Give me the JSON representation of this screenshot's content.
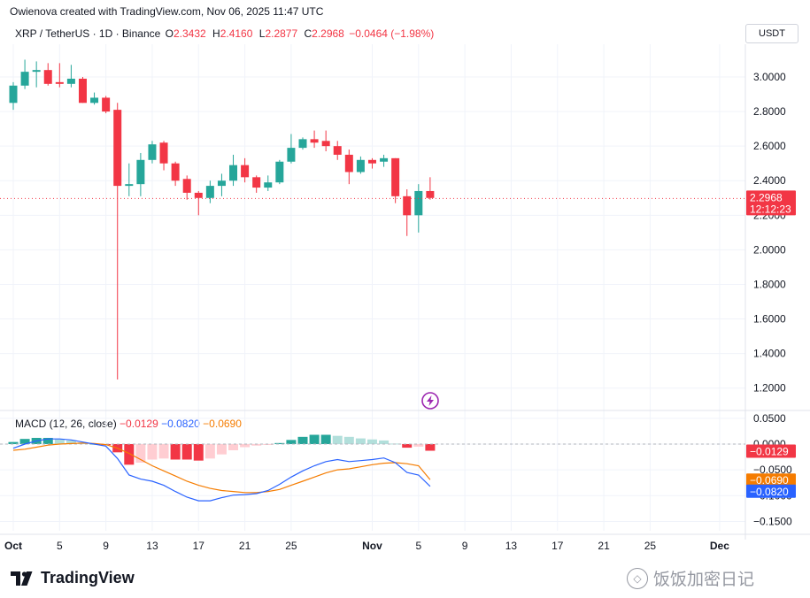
{
  "header": {
    "credit": "Owienova created with TradingView.com, Nov 06, 2025 11:47 UTC",
    "symbol": "XRP / TetherUS · 1D · Binance",
    "open_label": "O",
    "open": "2.3432",
    "high_label": "H",
    "high": "2.4160",
    "low_label": "L",
    "low": "2.2877",
    "close_label": "C",
    "close": "2.2968",
    "change": "−0.0464 (−1.98%)",
    "currency": "USDT"
  },
  "macd_legend": {
    "title": "MACD (12, 26, close)",
    "hist": "−0.0129",
    "macd": "−0.0820",
    "signal": "−0.0690"
  },
  "price_tag": {
    "value": "2.2968",
    "countdown": "12:12:23"
  },
  "footer": {
    "brand": "TradingView",
    "watermark": "饭饭加密日记"
  },
  "colors": {
    "up": "#26a69a",
    "down": "#f23645",
    "macd": "#2962ff",
    "signal": "#f57c00",
    "hist_up_strong": "#26a69a",
    "hist_up_weak": "#b2dfdb",
    "hist_down_strong": "#f23645",
    "hist_down_weak": "#ffcdd2"
  },
  "chart_data": [
    {
      "type": "candlestick",
      "title": "",
      "y_ticks": [
        "3.0000",
        "2.8000",
        "2.6000",
        "2.4000",
        "2.2000",
        "2.0000",
        "1.8000",
        "1.6000",
        "1.4000",
        "1.2000"
      ],
      "ylim": [
        1.1,
        3.2
      ],
      "x_ticks": [
        {
          "label": "Oct",
          "day": 1
        },
        {
          "label": "5",
          "day": 5
        },
        {
          "label": "9",
          "day": 9
        },
        {
          "label": "13",
          "day": 13
        },
        {
          "label": "17",
          "day": 17
        },
        {
          "label": "21",
          "day": 21
        },
        {
          "label": "25",
          "day": 25
        },
        {
          "label": "Nov",
          "day": 32
        },
        {
          "label": "5",
          "day": 36
        },
        {
          "label": "9",
          "day": 40
        },
        {
          "label": "13",
          "day": 44
        },
        {
          "label": "17",
          "day": 48
        },
        {
          "label": "21",
          "day": 52
        },
        {
          "label": "25",
          "day": 56
        },
        {
          "label": "Dec",
          "day": 62
        }
      ],
      "candles": [
        {
          "day": 1,
          "o": 2.85,
          "h": 2.97,
          "l": 2.81,
          "c": 2.95
        },
        {
          "day": 2,
          "o": 2.95,
          "h": 3.1,
          "l": 2.93,
          "c": 3.03
        },
        {
          "day": 3,
          "o": 3.03,
          "h": 3.09,
          "l": 2.94,
          "c": 3.04
        },
        {
          "day": 4,
          "o": 3.04,
          "h": 3.08,
          "l": 2.95,
          "c": 2.96
        },
        {
          "day": 5,
          "o": 2.97,
          "h": 3.08,
          "l": 2.94,
          "c": 2.96
        },
        {
          "day": 6,
          "o": 2.96,
          "h": 3.07,
          "l": 2.94,
          "c": 2.99
        },
        {
          "day": 7,
          "o": 2.99,
          "h": 3.0,
          "l": 2.85,
          "c": 2.85
        },
        {
          "day": 8,
          "o": 2.85,
          "h": 2.91,
          "l": 2.84,
          "c": 2.88
        },
        {
          "day": 9,
          "o": 2.88,
          "h": 2.89,
          "l": 2.79,
          "c": 2.8
        },
        {
          "day": 10,
          "o": 2.81,
          "h": 2.85,
          "l": 1.25,
          "c": 2.37
        },
        {
          "day": 11,
          "o": 2.37,
          "h": 2.5,
          "l": 2.31,
          "c": 2.38
        },
        {
          "day": 12,
          "o": 2.38,
          "h": 2.56,
          "l": 2.31,
          "c": 2.52
        },
        {
          "day": 13,
          "o": 2.52,
          "h": 2.63,
          "l": 2.5,
          "c": 2.61
        },
        {
          "day": 14,
          "o": 2.62,
          "h": 2.63,
          "l": 2.46,
          "c": 2.5
        },
        {
          "day": 15,
          "o": 2.5,
          "h": 2.51,
          "l": 2.37,
          "c": 2.4
        },
        {
          "day": 16,
          "o": 2.41,
          "h": 2.43,
          "l": 2.29,
          "c": 2.33
        },
        {
          "day": 17,
          "o": 2.33,
          "h": 2.34,
          "l": 2.2,
          "c": 2.3
        },
        {
          "day": 18,
          "o": 2.3,
          "h": 2.4,
          "l": 2.27,
          "c": 2.37
        },
        {
          "day": 19,
          "o": 2.37,
          "h": 2.44,
          "l": 2.31,
          "c": 2.4
        },
        {
          "day": 20,
          "o": 2.4,
          "h": 2.55,
          "l": 2.37,
          "c": 2.49
        },
        {
          "day": 21,
          "o": 2.49,
          "h": 2.53,
          "l": 2.39,
          "c": 2.42
        },
        {
          "day": 22,
          "o": 2.42,
          "h": 2.43,
          "l": 2.33,
          "c": 2.36
        },
        {
          "day": 23,
          "o": 2.36,
          "h": 2.43,
          "l": 2.34,
          "c": 2.39
        },
        {
          "day": 24,
          "o": 2.39,
          "h": 2.52,
          "l": 2.38,
          "c": 2.51
        },
        {
          "day": 25,
          "o": 2.51,
          "h": 2.67,
          "l": 2.5,
          "c": 2.59
        },
        {
          "day": 26,
          "o": 2.59,
          "h": 2.65,
          "l": 2.58,
          "c": 2.64
        },
        {
          "day": 27,
          "o": 2.64,
          "h": 2.69,
          "l": 2.59,
          "c": 2.62
        },
        {
          "day": 28,
          "o": 2.63,
          "h": 2.69,
          "l": 2.57,
          "c": 2.6
        },
        {
          "day": 29,
          "o": 2.6,
          "h": 2.63,
          "l": 2.52,
          "c": 2.55
        },
        {
          "day": 30,
          "o": 2.55,
          "h": 2.58,
          "l": 2.38,
          "c": 2.45
        },
        {
          "day": 31,
          "o": 2.45,
          "h": 2.54,
          "l": 2.44,
          "c": 2.52
        },
        {
          "day": 32,
          "o": 2.52,
          "h": 2.53,
          "l": 2.47,
          "c": 2.5
        },
        {
          "day": 33,
          "o": 2.51,
          "h": 2.55,
          "l": 2.48,
          "c": 2.53
        },
        {
          "day": 34,
          "o": 2.53,
          "h": 2.53,
          "l": 2.27,
          "c": 2.31
        },
        {
          "day": 35,
          "o": 2.31,
          "h": 2.35,
          "l": 2.08,
          "c": 2.2
        },
        {
          "day": 36,
          "o": 2.2,
          "h": 2.38,
          "l": 2.1,
          "c": 2.34
        },
        {
          "day": 37,
          "o": 2.34,
          "h": 2.42,
          "l": 2.29,
          "c": 2.3
        }
      ],
      "last_price": 2.2968
    },
    {
      "type": "macd",
      "title": "MACD (12, 26, close)",
      "y_ticks": [
        "0.0500",
        "0.0000",
        "−0.0500",
        "−0.1000",
        "−0.1500"
      ],
      "ylim": [
        -0.17,
        0.07
      ],
      "histogram": [
        0.004,
        0.01,
        0.012,
        0.012,
        0.01,
        0.007,
        0.003,
        0.0,
        -0.002,
        -0.016,
        -0.04,
        -0.036,
        -0.03,
        -0.028,
        -0.03,
        -0.03,
        -0.032,
        -0.028,
        -0.02,
        -0.012,
        -0.006,
        -0.003,
        -0.001,
        0.002,
        0.008,
        0.014,
        0.018,
        0.018,
        0.016,
        0.014,
        0.011,
        0.009,
        0.007,
        0.001,
        -0.007,
        -0.005,
        -0.0129
      ],
      "macd": [
        -0.008,
        0.0,
        0.006,
        0.01,
        0.01,
        0.008,
        0.004,
        0.0,
        -0.004,
        -0.028,
        -0.06,
        -0.068,
        -0.072,
        -0.08,
        -0.092,
        -0.103,
        -0.11,
        -0.11,
        -0.104,
        -0.099,
        -0.098,
        -0.096,
        -0.09,
        -0.078,
        -0.064,
        -0.052,
        -0.042,
        -0.034,
        -0.03,
        -0.034,
        -0.032,
        -0.03,
        -0.027,
        -0.036,
        -0.055,
        -0.06,
        -0.082
      ],
      "signal": [
        -0.012,
        -0.01,
        -0.006,
        -0.002,
        0.0,
        0.001,
        0.002,
        0.001,
        -0.001,
        -0.008,
        -0.018,
        -0.03,
        -0.042,
        -0.052,
        -0.062,
        -0.072,
        -0.08,
        -0.086,
        -0.09,
        -0.092,
        -0.094,
        -0.094,
        -0.092,
        -0.088,
        -0.08,
        -0.072,
        -0.064,
        -0.056,
        -0.05,
        -0.048,
        -0.044,
        -0.04,
        -0.037,
        -0.036,
        -0.038,
        -0.042,
        -0.069
      ],
      "last_values": {
        "hist": "−0.0129",
        "signal": "−0.0690",
        "macd": "−0.0820"
      }
    }
  ]
}
